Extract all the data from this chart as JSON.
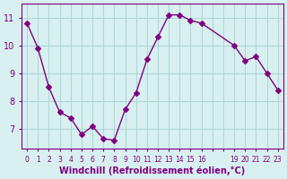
{
  "x": [
    0,
    1,
    2,
    3,
    4,
    5,
    6,
    7,
    8,
    9,
    10,
    11,
    12,
    13,
    14,
    15,
    16,
    19,
    20,
    21,
    22,
    23
  ],
  "y": [
    10.8,
    9.9,
    8.5,
    7.6,
    7.4,
    6.8,
    7.1,
    6.65,
    6.6,
    7.7,
    8.3,
    9.5,
    10.3,
    11.1,
    11.1,
    10.9,
    10.8,
    10.0,
    9.45,
    9.6,
    9.0,
    8.4
  ],
  "line_color": "#800080",
  "marker": "D",
  "marker_size": 3,
  "bg_color": "#d8f0f0",
  "grid_color": "#b0d8d8",
  "xlabel": "Windchill (Refroidissement éolien,°C)",
  "xlabel_color": "#800080",
  "tick_color": "#800080",
  "ylabel_ticks": [
    7,
    8,
    9,
    10,
    11
  ],
  "xlim": [
    -0.5,
    23.5
  ],
  "ylim": [
    6.3,
    11.5
  ],
  "xticks": [
    0,
    1,
    2,
    3,
    4,
    5,
    6,
    7,
    8,
    9,
    10,
    11,
    12,
    13,
    14,
    15,
    16,
    17,
    18,
    19,
    20,
    21,
    22,
    23
  ],
  "xtick_labels": [
    "0",
    "1",
    "2",
    "3",
    "4",
    "5",
    "6",
    "7",
    "8",
    "9",
    "10",
    "11",
    "12",
    "13",
    "14",
    "15",
    "16",
    "",
    "",
    "19",
    "20",
    "21",
    "22",
    "23"
  ]
}
